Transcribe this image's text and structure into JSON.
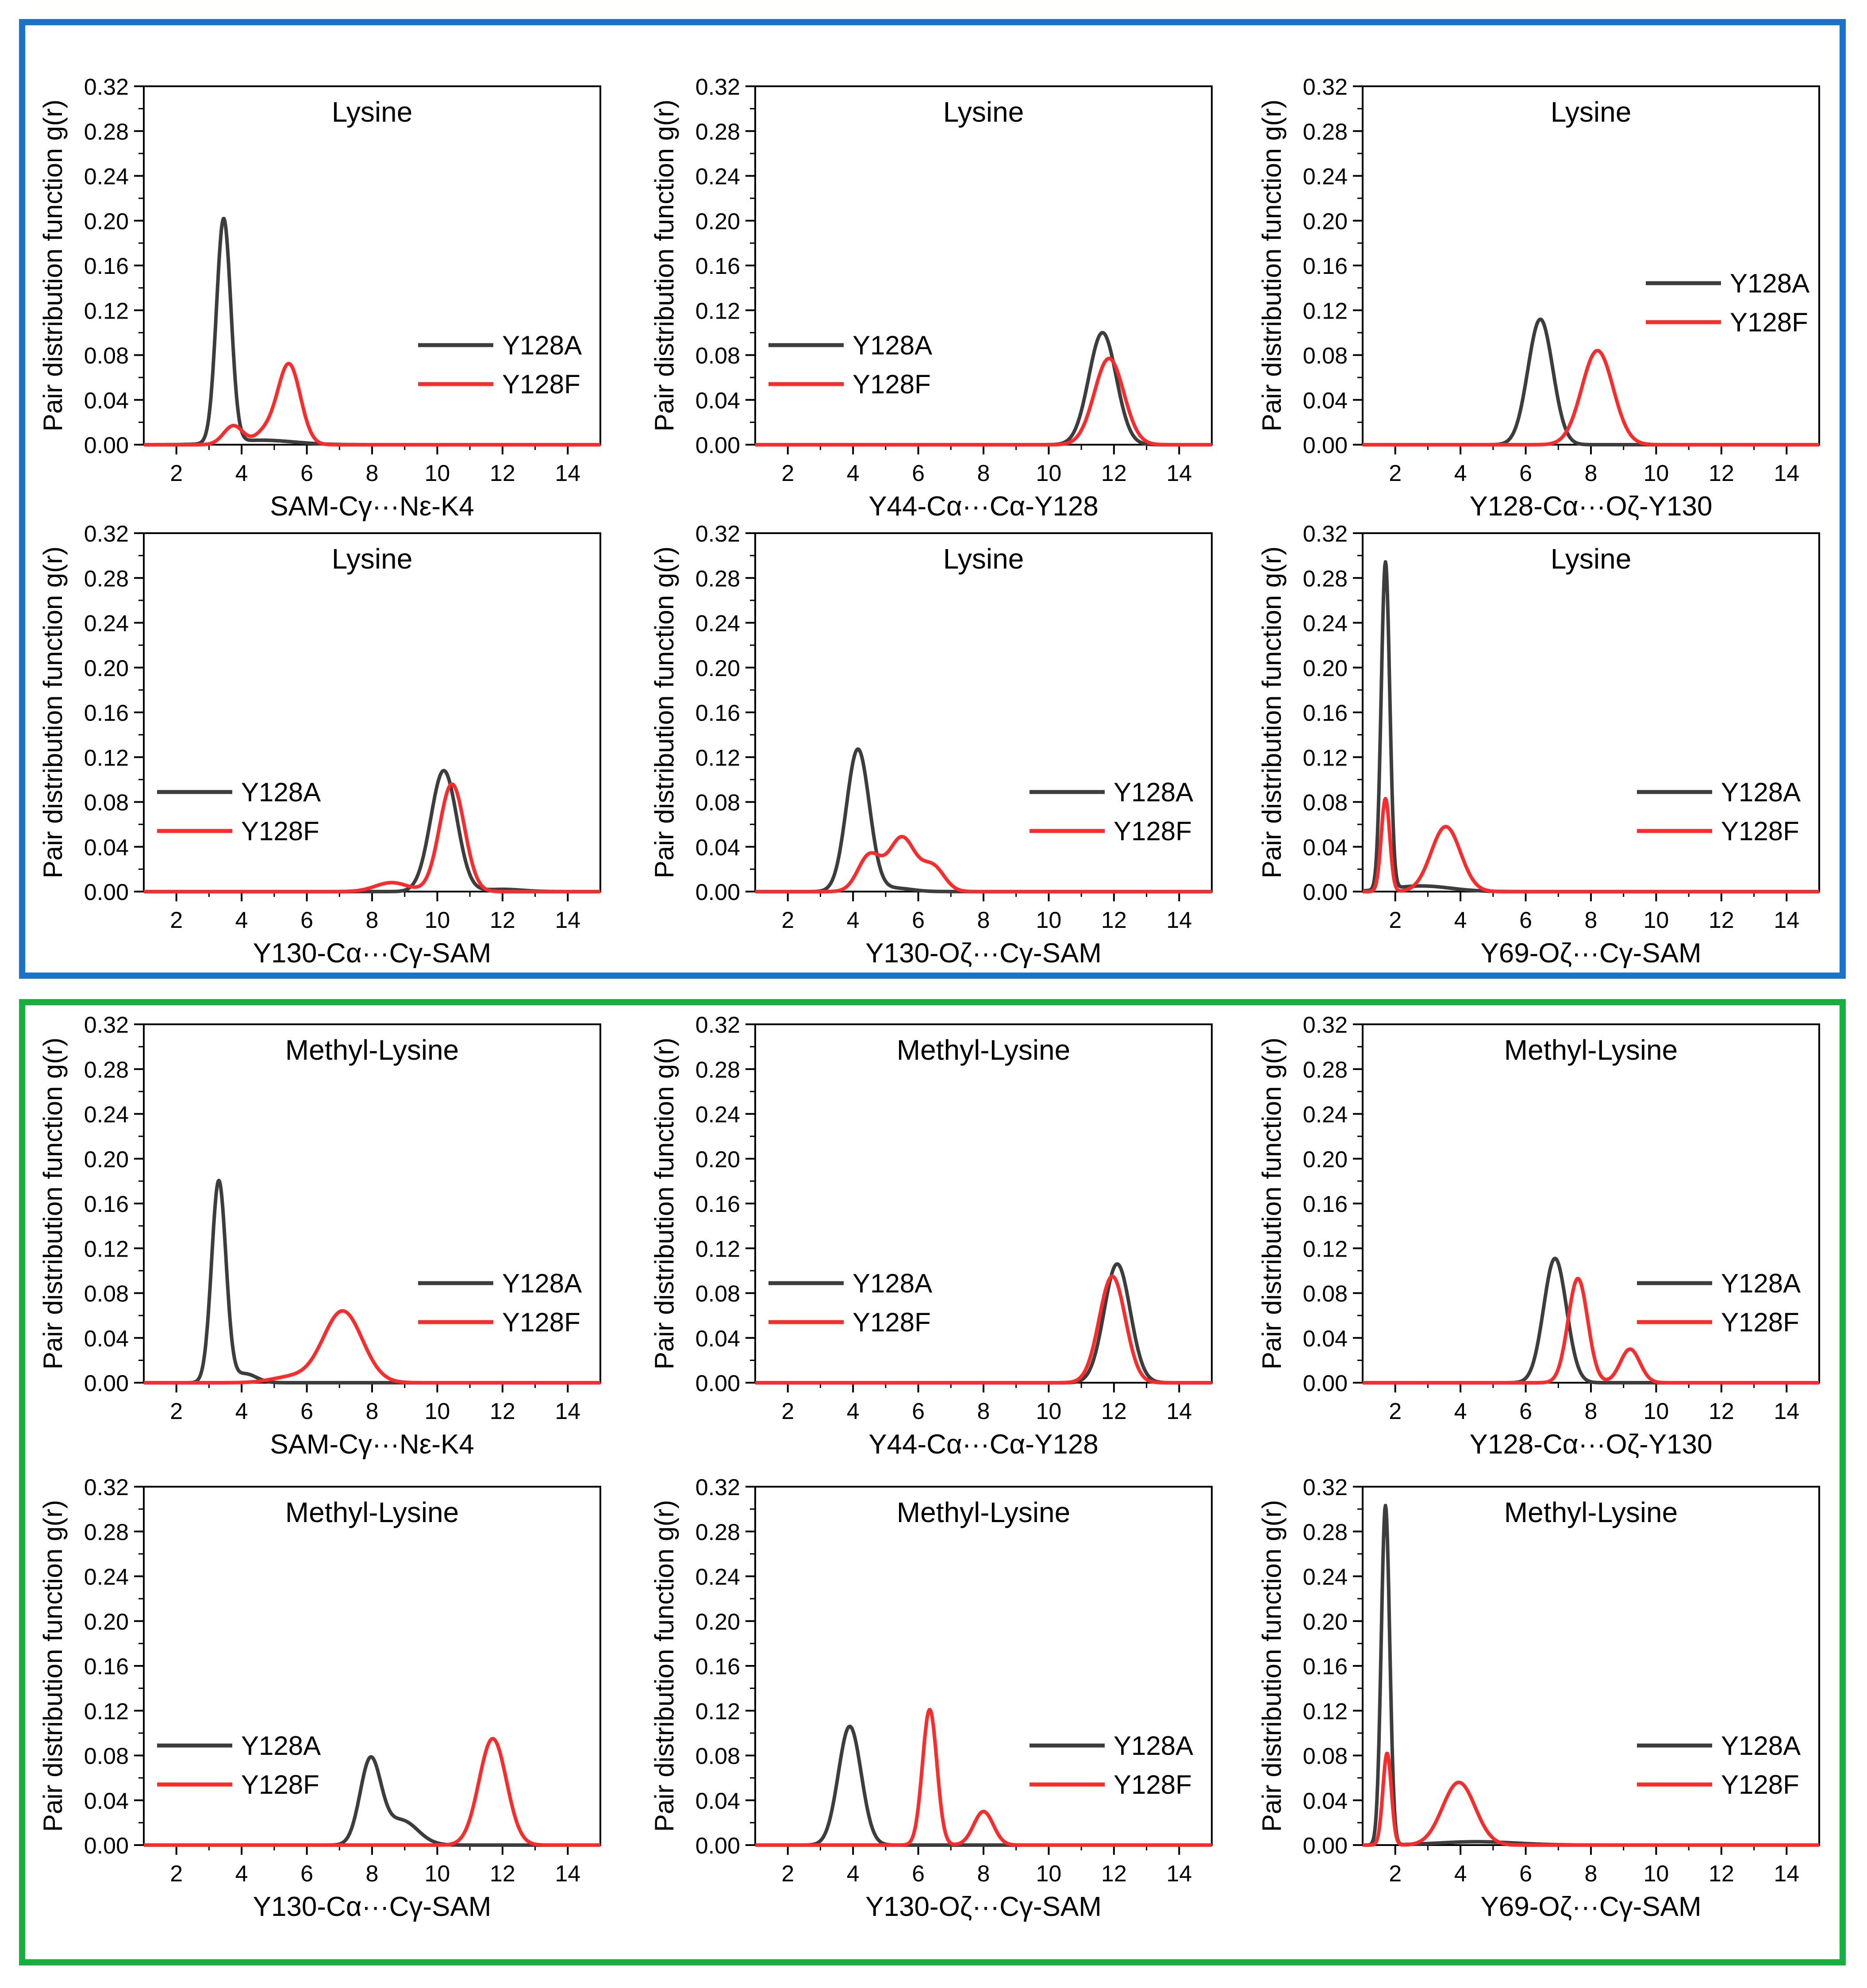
{
  "figure": {
    "colors": {
      "series_a": "#3d3d3d",
      "series_b": "#ff2a2a",
      "box_top": "#1a73c8",
      "box_bottom": "#17b040"
    },
    "ylabel": "Pair distribution function g(r)",
    "yticks": [
      "0.00",
      "0.04",
      "0.08",
      "0.12",
      "0.16",
      "0.20",
      "0.24",
      "0.28",
      "0.32"
    ],
    "xticks": [
      "2",
      "4",
      "6",
      "8",
      "10",
      "12",
      "14"
    ]
  },
  "chart_data": [
    {
      "type": "line",
      "title": "Lysine",
      "xlabel": "SAM-Cγ···Nε-K4",
      "xlim": [
        1,
        15
      ],
      "ylim": [
        0,
        0.32
      ],
      "legend": {
        "position": "right-middle",
        "labels": [
          "Y128A",
          "Y128F"
        ]
      },
      "series": [
        {
          "name": "Y128A",
          "peaks": [
            [
              3.45,
              0.2,
              0.22
            ],
            [
              4.6,
              0.004,
              1.0
            ]
          ]
        },
        {
          "name": "Y128F",
          "peaks": [
            [
              3.75,
              0.017,
              0.3
            ],
            [
              5.45,
              0.072,
              0.35
            ],
            [
              4.7,
              0.01,
              0.3
            ]
          ]
        }
      ]
    },
    {
      "type": "line",
      "title": "Lysine",
      "xlabel": "Y44-Cα···Cα-Y128",
      "xlim": [
        1,
        15
      ],
      "ylim": [
        0,
        0.32
      ],
      "legend": {
        "position": "left-middle",
        "labels": [
          "Y128A",
          "Y128F"
        ]
      },
      "series": [
        {
          "name": "Y128A",
          "peaks": [
            [
              11.65,
              0.1,
              0.42
            ]
          ]
        },
        {
          "name": "Y128F",
          "peaks": [
            [
              11.85,
              0.077,
              0.45
            ]
          ]
        }
      ]
    },
    {
      "type": "line",
      "title": "Lysine",
      "xlabel": "Y128-Cα···Oζ-Y130",
      "xlim": [
        1,
        15
      ],
      "ylim": [
        0,
        0.32
      ],
      "legend": {
        "position": "top-right",
        "labels": [
          "Y128A",
          "Y128F"
        ]
      },
      "series": [
        {
          "name": "Y128A",
          "peaks": [
            [
              6.45,
              0.112,
              0.38
            ]
          ]
        },
        {
          "name": "Y128F",
          "peaks": [
            [
              8.2,
              0.084,
              0.48
            ]
          ]
        }
      ]
    },
    {
      "type": "line",
      "title": "Lysine",
      "xlabel": "Y130-Cα···Cγ-SAM",
      "xlim": [
        1,
        15
      ],
      "ylim": [
        0,
        0.32
      ],
      "legend": {
        "position": "left-middle",
        "labels": [
          "Y128A",
          "Y128F"
        ]
      },
      "series": [
        {
          "name": "Y128A",
          "peaks": [
            [
              10.2,
              0.108,
              0.4
            ],
            [
              12.0,
              0.002,
              0.6
            ]
          ]
        },
        {
          "name": "Y128F",
          "peaks": [
            [
              10.45,
              0.096,
              0.38
            ],
            [
              8.6,
              0.008,
              0.5
            ]
          ]
        }
      ]
    },
    {
      "type": "line",
      "title": "Lysine",
      "xlabel": "Y130-Oζ···Cγ-SAM",
      "xlim": [
        1,
        15
      ],
      "ylim": [
        0,
        0.32
      ],
      "legend": {
        "position": "right-middle",
        "labels": [
          "Y128A",
          "Y128F"
        ]
      },
      "series": [
        {
          "name": "Y128A",
          "peaks": [
            [
              4.15,
              0.127,
              0.35
            ],
            [
              5.3,
              0.003,
              0.5
            ]
          ]
        },
        {
          "name": "Y128F",
          "peaks": [
            [
              4.5,
              0.032,
              0.35
            ],
            [
              5.5,
              0.048,
              0.4
            ],
            [
              6.45,
              0.022,
              0.35
            ]
          ]
        }
      ]
    },
    {
      "type": "line",
      "title": "Lysine",
      "xlabel": "Y69-Oζ···Cγ-SAM",
      "xlim": [
        1,
        15
      ],
      "ylim": [
        0,
        0.32
      ],
      "legend": {
        "position": "right-middle",
        "labels": [
          "Y128A",
          "Y128F"
        ]
      },
      "series": [
        {
          "name": "Y128A",
          "peaks": [
            [
              1.7,
              0.292,
              0.13
            ],
            [
              2.8,
              0.005,
              0.9
            ]
          ]
        },
        {
          "name": "Y128F",
          "peaks": [
            [
              1.7,
              0.083,
              0.13
            ],
            [
              3.55,
              0.058,
              0.45
            ]
          ]
        }
      ]
    },
    {
      "type": "line",
      "title": "Methyl-Lysine",
      "xlabel": "SAM-Cγ···Nε-K4",
      "xlim": [
        1,
        15
      ],
      "ylim": [
        0,
        0.32
      ],
      "legend": {
        "position": "right-middle",
        "labels": [
          "Y128A",
          "Y128F"
        ]
      },
      "series": [
        {
          "name": "Y128A",
          "peaks": [
            [
              3.3,
              0.18,
              0.22
            ],
            [
              4.1,
              0.008,
              0.35
            ]
          ]
        },
        {
          "name": "Y128F",
          "peaks": [
            [
              7.1,
              0.064,
              0.6
            ],
            [
              5.5,
              0.005,
              0.6
            ]
          ]
        }
      ]
    },
    {
      "type": "line",
      "title": "Methyl-Lysine",
      "xlabel": "Y44-Cα···Cα-Y128",
      "xlim": [
        1,
        15
      ],
      "ylim": [
        0,
        0.32
      ],
      "legend": {
        "position": "left-middle",
        "labels": [
          "Y128A",
          "Y128F"
        ]
      },
      "series": [
        {
          "name": "Y128A",
          "peaks": [
            [
              12.1,
              0.106,
              0.4
            ]
          ]
        },
        {
          "name": "Y128F",
          "peaks": [
            [
              11.95,
              0.095,
              0.4
            ]
          ]
        }
      ]
    },
    {
      "type": "line",
      "title": "Methyl-Lysine",
      "xlabel": "Y128-Cα···Oζ-Y130",
      "xlim": [
        1,
        15
      ],
      "ylim": [
        0,
        0.32
      ],
      "legend": {
        "position": "right-middle",
        "labels": [
          "Y128A",
          "Y128F"
        ]
      },
      "series": [
        {
          "name": "Y128A",
          "peaks": [
            [
              6.9,
              0.111,
              0.35
            ]
          ]
        },
        {
          "name": "Y128F",
          "peaks": [
            [
              7.6,
              0.093,
              0.3
            ],
            [
              9.2,
              0.03,
              0.3
            ]
          ]
        }
      ]
    },
    {
      "type": "line",
      "title": "Methyl-Lysine",
      "xlabel": "Y130-Cα···Cγ-SAM",
      "xlim": [
        1,
        15
      ],
      "ylim": [
        0,
        0.32
      ],
      "legend": {
        "position": "left-middle",
        "labels": [
          "Y128A",
          "Y128F"
        ]
      },
      "series": [
        {
          "name": "Y128A",
          "peaks": [
            [
              7.95,
              0.075,
              0.32
            ],
            [
              8.9,
              0.022,
              0.5
            ]
          ]
        },
        {
          "name": "Y128F",
          "peaks": [
            [
              11.7,
              0.095,
              0.42
            ]
          ]
        }
      ]
    },
    {
      "type": "line",
      "title": "Methyl-Lysine",
      "xlabel": "Y130-Oζ···Cγ-SAM",
      "xlim": [
        1,
        15
      ],
      "ylim": [
        0,
        0.32
      ],
      "legend": {
        "position": "right-middle",
        "labels": [
          "Y128A",
          "Y128F"
        ]
      },
      "series": [
        {
          "name": "Y128A",
          "peaks": [
            [
              3.9,
              0.106,
              0.35
            ]
          ]
        },
        {
          "name": "Y128F",
          "peaks": [
            [
              6.35,
              0.121,
              0.22
            ],
            [
              8.0,
              0.03,
              0.3
            ]
          ]
        }
      ]
    },
    {
      "type": "line",
      "title": "Methyl-Lysine",
      "xlabel": "Y69-Oζ···Cγ-SAM",
      "xlim": [
        1,
        15
      ],
      "ylim": [
        0,
        0.32
      ],
      "legend": {
        "position": "right-middle",
        "labels": [
          "Y128A",
          "Y128F"
        ]
      },
      "series": [
        {
          "name": "Y128A",
          "peaks": [
            [
              1.7,
              0.303,
              0.13
            ],
            [
              4.5,
              0.003,
              1.2
            ]
          ]
        },
        {
          "name": "Y128F",
          "peaks": [
            [
              1.75,
              0.082,
              0.13
            ],
            [
              3.95,
              0.056,
              0.5
            ]
          ]
        }
      ]
    }
  ]
}
